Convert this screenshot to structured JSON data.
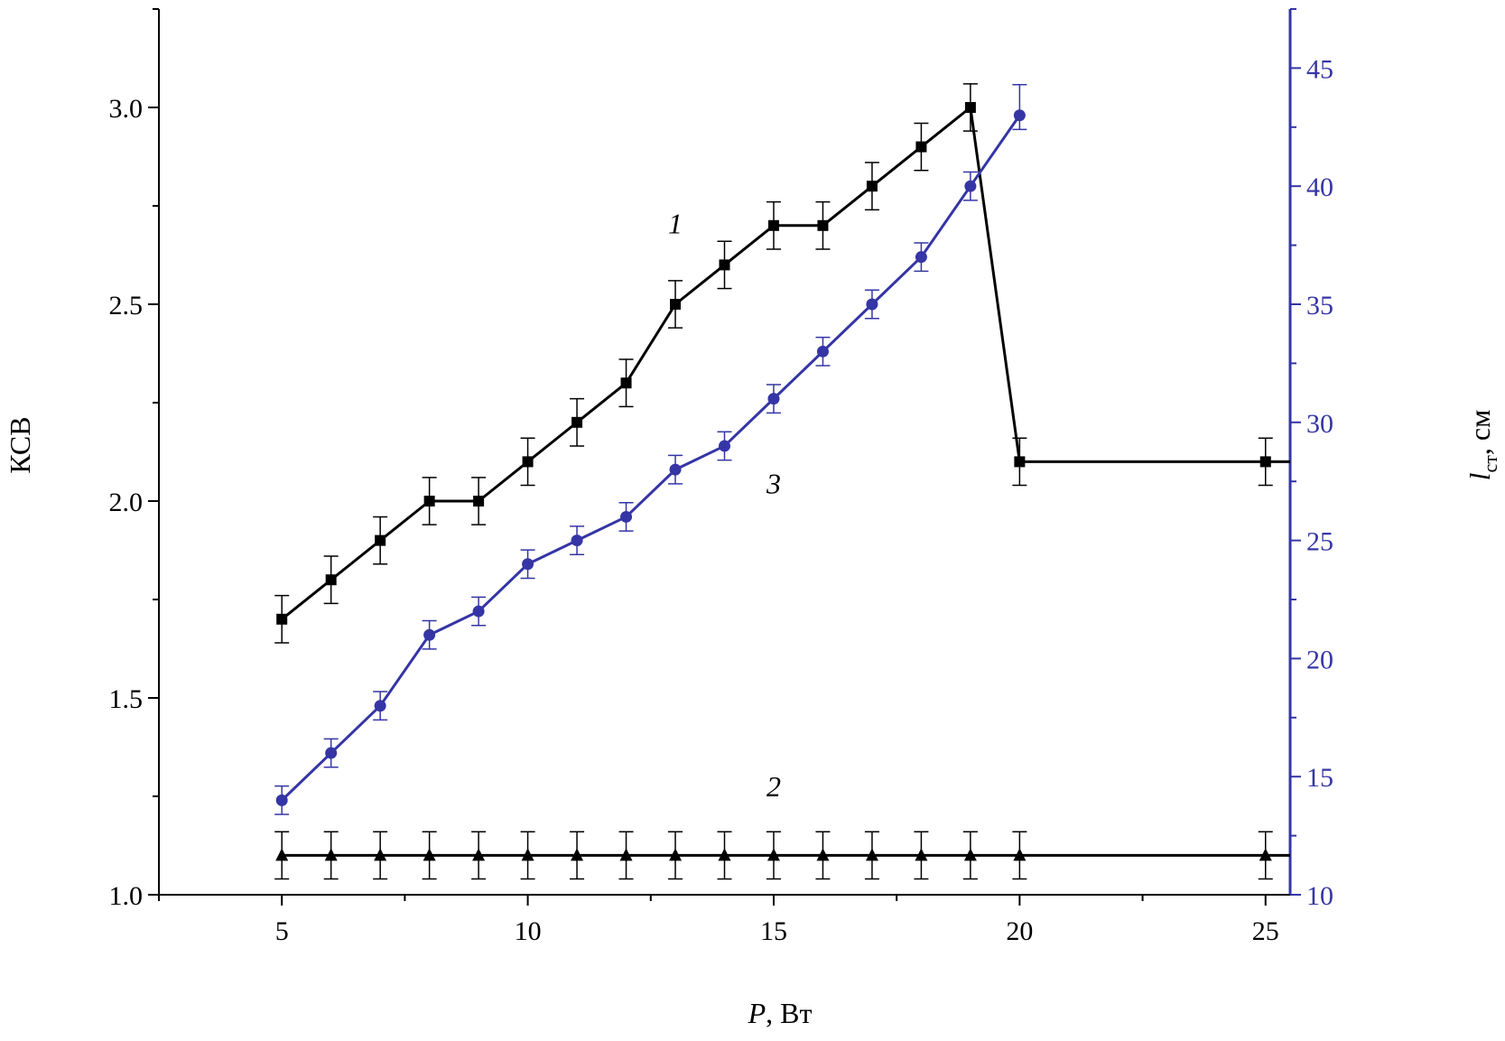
{
  "chart_data": {
    "type": "line",
    "xlabel": {
      "italic": "P",
      "rest": ", Вт"
    },
    "ylabel_left": "КСВ",
    "ylabel_right": {
      "italic": "l",
      "sub": "ст",
      "rest": ", см"
    },
    "xlim": [
      2.5,
      25.5
    ],
    "ylim_left": [
      1.0,
      3.25
    ],
    "ylim_right": [
      10,
      47.5
    ],
    "x_ticks": [
      5,
      10,
      15,
      20,
      25
    ],
    "y_left_ticks": [
      "1.0",
      "1.5",
      "2.0",
      "2.5",
      "3.0"
    ],
    "y_right_ticks": [
      "10",
      "15",
      "20",
      "25",
      "30",
      "35",
      "40",
      "45"
    ],
    "grid": false,
    "colors": {
      "black": "#000000",
      "blue": "#3535a6"
    },
    "series": [
      {
        "label": "1",
        "axis": "left",
        "marker": "square",
        "color": "#000000",
        "error": 0.06,
        "x": [
          5,
          6,
          7,
          8,
          9,
          10,
          11,
          12,
          13,
          14,
          15,
          16,
          17,
          18,
          19,
          20,
          25
        ],
        "y": [
          1.7,
          1.8,
          1.9,
          2.0,
          2.0,
          2.1,
          2.2,
          2.3,
          2.5,
          2.6,
          2.7,
          2.7,
          2.8,
          2.9,
          3.0,
          2.1,
          2.1
        ],
        "line_extends_to_x": 25.5
      },
      {
        "label": "2",
        "axis": "left",
        "marker": "triangle",
        "color": "#000000",
        "error": 0.06,
        "x": [
          5,
          6,
          7,
          8,
          9,
          10,
          11,
          12,
          13,
          14,
          15,
          16,
          17,
          18,
          19,
          20,
          25
        ],
        "y": [
          1.1,
          1.1,
          1.1,
          1.1,
          1.1,
          1.1,
          1.1,
          1.1,
          1.1,
          1.1,
          1.1,
          1.1,
          1.1,
          1.1,
          1.1,
          1.1,
          1.1
        ],
        "line_extends_to_x": 25.5
      },
      {
        "label": "3",
        "axis": "right",
        "marker": "circle",
        "color": "#3535a6",
        "error": 0.6,
        "error_top": 1.3,
        "x": [
          5,
          6,
          7,
          8,
          9,
          10,
          11,
          12,
          13,
          14,
          15,
          16,
          17,
          18,
          19,
          20
        ],
        "y": [
          14,
          16,
          18,
          21,
          22,
          24,
          25,
          26,
          28,
          29,
          31,
          33,
          35,
          37,
          40,
          43
        ]
      }
    ],
    "curve_labels": [
      {
        "text": "1",
        "x": 13.0,
        "y": 2.68,
        "axis": "left"
      },
      {
        "text": "3",
        "x": 15.0,
        "y": 2.02,
        "axis": "left"
      },
      {
        "text": "2",
        "x": 15.0,
        "y": 1.25,
        "axis": "left"
      }
    ]
  }
}
